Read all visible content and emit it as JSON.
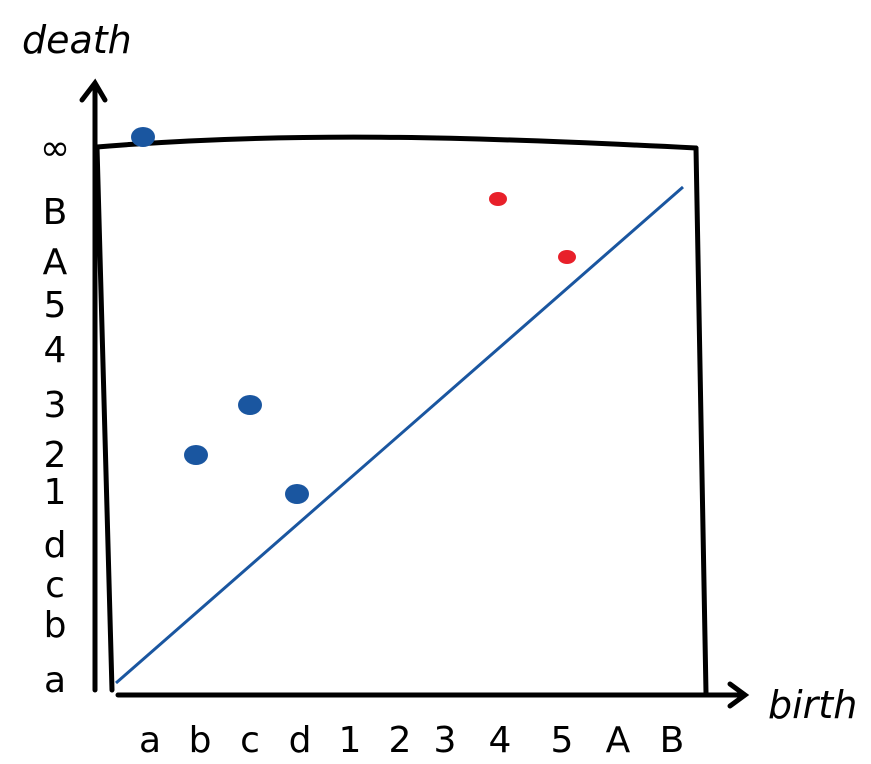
{
  "chart_data": {
    "type": "scatter",
    "xlabel": "birth",
    "ylabel": "death",
    "x_ticks": [
      "a",
      "b",
      "c",
      "d",
      "1",
      "2",
      "3",
      "4",
      "5",
      "A",
      "B"
    ],
    "y_ticks": [
      "a",
      "b",
      "c",
      "d",
      "1",
      "2",
      "3",
      "4",
      "5",
      "A",
      "B",
      "∞"
    ],
    "diagonal": true,
    "colors": {
      "series_blue": "#1a56a0",
      "series_red": "#e8202a",
      "frame": "#000000",
      "diagonal": "#1a56a0"
    },
    "series": [
      {
        "color": "#1a56a0",
        "points": [
          {
            "x": "a",
            "y": "∞"
          },
          {
            "x": "a",
            "y": "2"
          },
          {
            "x": "b",
            "y": "3"
          },
          {
            "x": "d",
            "y": "1"
          }
        ]
      },
      {
        "color": "#e8202a",
        "points": [
          {
            "x": "3",
            "y": "B"
          },
          {
            "x": "4",
            "y": "A"
          }
        ]
      }
    ]
  }
}
